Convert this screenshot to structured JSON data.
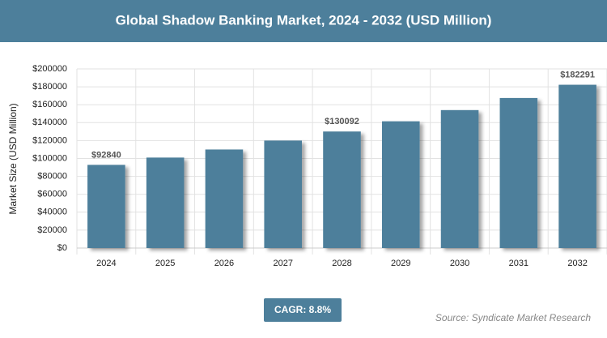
{
  "chart_data": {
    "type": "bar",
    "title": "Global Shadow Banking Market, 2024 - 2032 (USD Million)",
    "y_label": "Market Size (USD Million)",
    "categories": [
      "2024",
      "2025",
      "2026",
      "2027",
      "2028",
      "2029",
      "2030",
      "2031",
      "2032"
    ],
    "values": [
      92840,
      101000,
      110000,
      120000,
      130092,
      141500,
      154000,
      167500,
      182291
    ],
    "value_labels": [
      "$92840",
      null,
      null,
      null,
      "$130092",
      null,
      null,
      null,
      "$182291"
    ],
    "color": "#4d7f9b",
    "ylim": [
      0,
      200000
    ],
    "yticks": [
      {
        "value": 0,
        "label": "$0"
      },
      {
        "value": 20000,
        "label": "$20000"
      },
      {
        "value": 40000,
        "label": "$40000"
      },
      {
        "value": 60000,
        "label": "$60000"
      },
      {
        "value": 80000,
        "label": "$80000"
      },
      {
        "value": 100000,
        "label": "$100000"
      },
      {
        "value": 120000,
        "label": "$120000"
      },
      {
        "value": 140000,
        "label": "$140000"
      },
      {
        "value": 160000,
        "label": "$160000"
      },
      {
        "value": 180000,
        "label": "$180000"
      },
      {
        "value": 200000,
        "label": "$200000"
      }
    ],
    "grid": true,
    "cagr_label": "CAGR: 8.8%",
    "source": "Source: Syndicate Market Research"
  }
}
